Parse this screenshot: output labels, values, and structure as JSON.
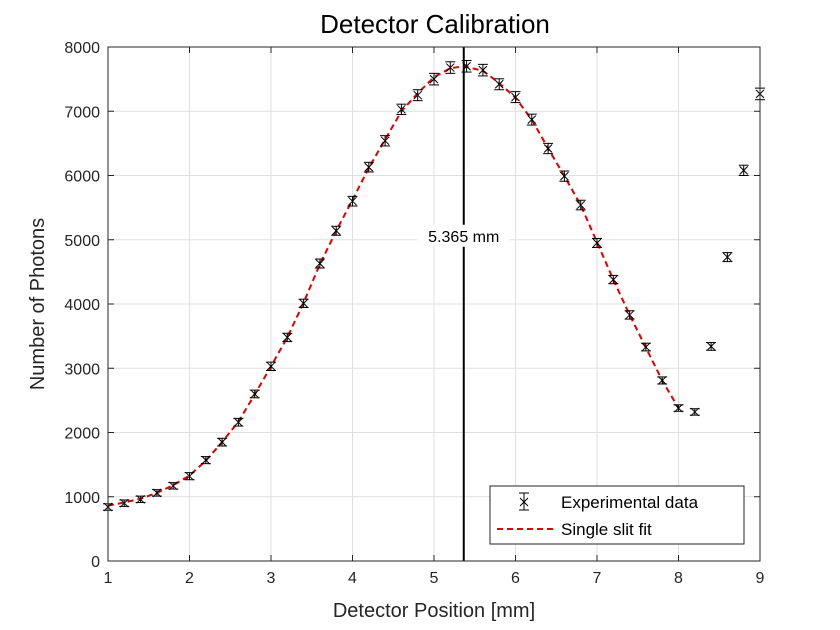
{
  "chart_data": {
    "type": "scatter",
    "title": "Detector Calibration",
    "xlabel": "Detector Position [mm]",
    "ylabel": "Number of Photons",
    "xlim": [
      1,
      9
    ],
    "ylim": [
      0,
      8000
    ],
    "xticks": [
      1,
      2,
      3,
      4,
      5,
      6,
      7,
      8,
      9
    ],
    "yticks": [
      0,
      1000,
      2000,
      3000,
      4000,
      5000,
      6000,
      7000,
      8000
    ],
    "grid": true,
    "legend_position": "bottom-right",
    "series": [
      {
        "name": "Experimental data",
        "marker": "x",
        "color": "#000000",
        "x": [
          1.0,
          1.2,
          1.4,
          1.6,
          1.8,
          2.0,
          2.2,
          2.4,
          2.6,
          2.8,
          3.0,
          3.2,
          3.4,
          3.6,
          3.8,
          4.0,
          4.2,
          4.4,
          4.6,
          4.8,
          5.0,
          5.2,
          5.4,
          5.6,
          5.8,
          6.0,
          6.2,
          6.4,
          6.6,
          6.8,
          7.0,
          7.2,
          7.4,
          7.6,
          7.8,
          8.0,
          8.2,
          8.4,
          8.6,
          8.8,
          9.0
        ],
        "y": [
          840,
          900,
          960,
          1060,
          1170,
          1320,
          1570,
          1850,
          2160,
          2600,
          3030,
          3480,
          4010,
          4630,
          5140,
          5600,
          6130,
          6540,
          7030,
          7250,
          7500,
          7680,
          7700,
          7640,
          7420,
          7220,
          6870,
          6420,
          5990,
          5540,
          4950,
          4380,
          3830,
          3330,
          2810,
          2380,
          2320,
          3340,
          4730,
          6080,
          7270
        ],
        "err": [
          50,
          50,
          50,
          50,
          50,
          55,
          55,
          60,
          60,
          60,
          65,
          65,
          65,
          70,
          70,
          75,
          75,
          80,
          80,
          85,
          90,
          90,
          90,
          90,
          85,
          85,
          85,
          80,
          80,
          75,
          70,
          65,
          65,
          60,
          55,
          50,
          50,
          60,
          70,
          80,
          90
        ]
      },
      {
        "name": "Single slit fit",
        "line_style": "dashed",
        "color": "#e00000",
        "x": [
          1.0,
          1.2,
          1.4,
          1.6,
          1.8,
          2.0,
          2.2,
          2.4,
          2.6,
          2.8,
          3.0,
          3.2,
          3.4,
          3.6,
          3.8,
          4.0,
          4.2,
          4.4,
          4.6,
          4.8,
          5.0,
          5.2,
          5.365,
          5.6,
          5.8,
          6.0,
          6.2,
          6.4,
          6.6,
          6.8,
          7.0,
          7.2,
          7.4,
          7.6,
          7.8,
          8.0
        ],
        "y": [
          860,
          910,
          970,
          1060,
          1180,
          1330,
          1560,
          1850,
          2170,
          2590,
          3030,
          3480,
          4020,
          4620,
          5140,
          5620,
          6120,
          6560,
          7000,
          7280,
          7530,
          7670,
          7700,
          7630,
          7440,
          7210,
          6870,
          6420,
          5990,
          5540,
          4960,
          4380,
          3830,
          3320,
          2810,
          2380
        ]
      }
    ],
    "annotations": [
      {
        "type": "vline",
        "x": 5.365,
        "color": "#000000"
      },
      {
        "type": "text",
        "text": "5.365 mm",
        "x": 5.365,
        "y": 5000
      }
    ]
  }
}
